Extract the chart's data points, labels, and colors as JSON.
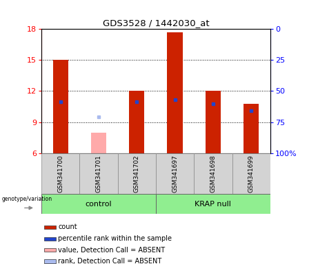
{
  "title": "GDS3528 / 1442030_at",
  "samples": [
    "GSM341700",
    "GSM341701",
    "GSM341702",
    "GSM341697",
    "GSM341698",
    "GSM341699"
  ],
  "ylim": [
    6,
    18
  ],
  "ylim_right": [
    0,
    100
  ],
  "yticks_left": [
    6,
    9,
    12,
    15,
    18
  ],
  "yticks_right": [
    0,
    25,
    50,
    75,
    100
  ],
  "red_bars_top": [
    15.0,
    8.0,
    12.0,
    17.7,
    12.0,
    10.8
  ],
  "red_bars_absent": [
    false,
    true,
    false,
    false,
    false,
    false
  ],
  "blue_markers_y": [
    11.0,
    null,
    11.0,
    11.2,
    10.8,
    10.1
  ],
  "blue_absent_y": [
    null,
    9.5,
    null,
    null,
    null,
    null
  ],
  "bar_bottom": 6,
  "bar_color_present": "#cc2200",
  "bar_color_absent": "#ffaaaa",
  "blue_color_present": "#2244cc",
  "blue_color_absent": "#aabbee",
  "bar_width": 0.4,
  "legend_items": [
    "count",
    "percentile rank within the sample",
    "value, Detection Call = ABSENT",
    "rank, Detection Call = ABSENT"
  ],
  "legend_colors": [
    "#cc2200",
    "#2244cc",
    "#ffaaaa",
    "#aabbee"
  ],
  "group_green": "#90ee90"
}
